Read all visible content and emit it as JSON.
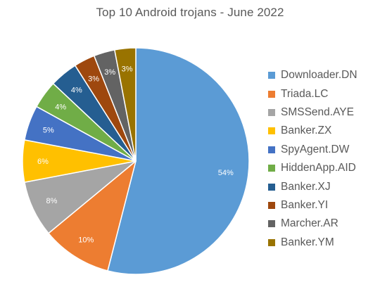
{
  "chart_data": {
    "type": "pie",
    "title": "Top 10 Android trojans - June 2022",
    "categories": [
      "Downloader.DN",
      "Triada.LC",
      "SMSSend.AYE",
      "Banker.ZX",
      "SpyAgent.DW",
      "HiddenApp.AID",
      "Banker.XJ",
      "Banker.YI",
      "Marcher.AR",
      "Banker.YM"
    ],
    "values": [
      54,
      10,
      8,
      6,
      5,
      4,
      4,
      3,
      3,
      3
    ],
    "data_labels": [
      "54%",
      "10%",
      "8%",
      "6%",
      "5%",
      "4%",
      "4%",
      "3%",
      "3%",
      "3%"
    ],
    "colors": [
      "#5B9BD5",
      "#ED7D31",
      "#A5A5A5",
      "#FFC000",
      "#4472C4",
      "#70AD47",
      "#255E91",
      "#9E480E",
      "#636363",
      "#997300"
    ],
    "legend_position": "right",
    "start_angle": "top, clockwise"
  }
}
